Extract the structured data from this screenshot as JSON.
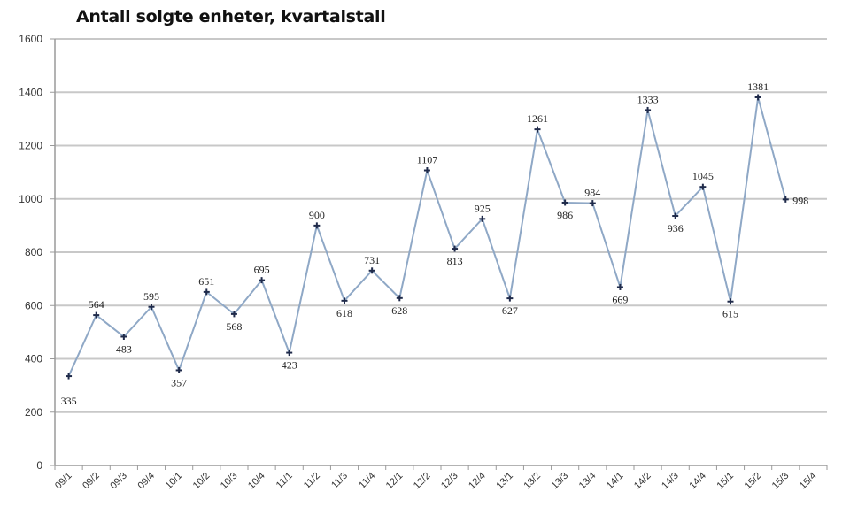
{
  "chart_data": {
    "type": "line",
    "title": "Antall solgte enheter, kvartalstall",
    "xlabel": "",
    "ylabel": "",
    "ylim": [
      0,
      1600
    ],
    "yticks": [
      0,
      200,
      400,
      600,
      800,
      1000,
      1200,
      1400,
      1600
    ],
    "grid": true,
    "legend": null,
    "categories": [
      "09/1",
      "09/2",
      "09/3",
      "09/4",
      "10/1",
      "10/2",
      "10/3",
      "10/4",
      "11/1",
      "11/2",
      "11/3",
      "11/4",
      "12/1",
      "12/2",
      "12/3",
      "12/4",
      "13/1",
      "13/2",
      "13/3",
      "13/4",
      "14/1",
      "14/2",
      "14/3",
      "14/4",
      "15/1",
      "15/2",
      "15/3",
      "15/4"
    ],
    "series": [
      {
        "name": "Antall solgte enheter",
        "values": [
          335,
          564,
          483,
          595,
          357,
          651,
          568,
          695,
          423,
          900,
          618,
          731,
          628,
          1107,
          813,
          925,
          627,
          1261,
          986,
          984,
          669,
          1333,
          936,
          1045,
          615,
          1381,
          998,
          null
        ],
        "label_pos": [
          "below",
          "above",
          "below",
          "above",
          "below",
          "above",
          "below",
          "above",
          "below",
          "above",
          "below",
          "above",
          "below",
          "above",
          "below",
          "above",
          "below",
          "above",
          "below",
          "above",
          "below",
          "above",
          "below",
          "above",
          "below",
          "above",
          "right",
          null
        ]
      }
    ],
    "colors": {
      "line": "#8fa8c6",
      "marker": "#1f2a4a",
      "grid": "#c8c8c8",
      "axis": "#9a9a9a"
    }
  }
}
